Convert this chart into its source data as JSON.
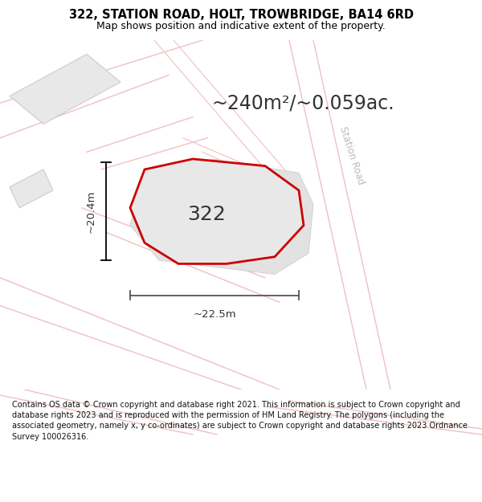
{
  "title": "322, STATION ROAD, HOLT, TROWBRIDGE, BA14 6RD",
  "subtitle": "Map shows position and indicative extent of the property.",
  "area_label": "~240m²/~0.059ac.",
  "plot_number": "322",
  "dim_width": "~22.5m",
  "dim_height": "~20.4m",
  "bg_color": "#f5f4f2",
  "road_color": "#f0c8c8",
  "road_outline_color": "#e8b0b0",
  "building_fill": "#e8e8e8",
  "building_outline": "#cccccc",
  "plot_fill": "#e8e8e8",
  "plot_edge": "#cc0000",
  "footer": "Contains OS data © Crown copyright and database right 2021. This information is subject to Crown copyright and database rights 2023 and is reproduced with the permission of HM Land Registry. The polygons (including the associated geometry, namely x, y co-ordinates) are subject to Crown copyright and database rights 2023 Ordnance Survey 100026316.",
  "station_road_label": "Station Road",
  "road_label_color": "#bbbbbb",
  "dim_color": "#333333",
  "plot_label_color": "#333333",
  "area_label_color": "#333333",
  "title_fontsize": 10.5,
  "subtitle_fontsize": 9,
  "area_fontsize": 17,
  "plot_num_fontsize": 18,
  "dim_fontsize": 9.5
}
